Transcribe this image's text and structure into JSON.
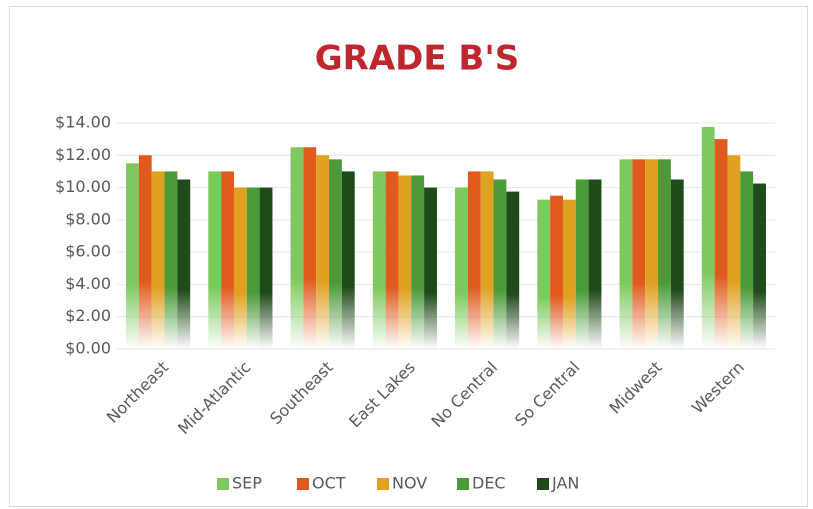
{
  "chart_data": {
    "type": "bar",
    "title": "GRADE B'S",
    "categories": [
      "Northeast",
      "Mid-Atlantic",
      "Southeast",
      "East Lakes",
      "No Central",
      "So Central",
      "Midwest",
      "Western"
    ],
    "series": [
      {
        "name": "SEP",
        "color": "#7dc95e",
        "values": [
          11.5,
          11,
          12.5,
          11,
          10,
          9.25,
          11.75,
          13.75
        ]
      },
      {
        "name": "OCT",
        "color": "#e05a1e",
        "values": [
          12,
          11,
          12.5,
          11,
          11,
          9.5,
          11.75,
          13
        ]
      },
      {
        "name": "NOV",
        "color": "#e0a020",
        "values": [
          11,
          10,
          12,
          10.75,
          11,
          9.25,
          11.75,
          12
        ]
      },
      {
        "name": "DEC",
        "color": "#4a9a3a",
        "values": [
          11,
          10,
          11.75,
          10.75,
          10.5,
          10.5,
          11.75,
          11
        ]
      },
      {
        "name": "JAN",
        "color": "#1f4a1a",
        "values": [
          10.5,
          10,
          11,
          10,
          9.75,
          10.5,
          10.5,
          10.25
        ]
      }
    ],
    "ylim": [
      0,
      14
    ],
    "yticks": [
      {
        "value": 0,
        "label": "$0.00"
      },
      {
        "value": 2,
        "label": "$2.00"
      },
      {
        "value": 4,
        "label": "$4.00"
      },
      {
        "value": 6,
        "label": "$6.00"
      },
      {
        "value": 8,
        "label": "$8.00"
      },
      {
        "value": 10,
        "label": "$10.00"
      },
      {
        "value": 12,
        "label": "$12.00"
      },
      {
        "value": 14,
        "label": "$14.00"
      }
    ],
    "grid": true,
    "legend": "bottom"
  }
}
